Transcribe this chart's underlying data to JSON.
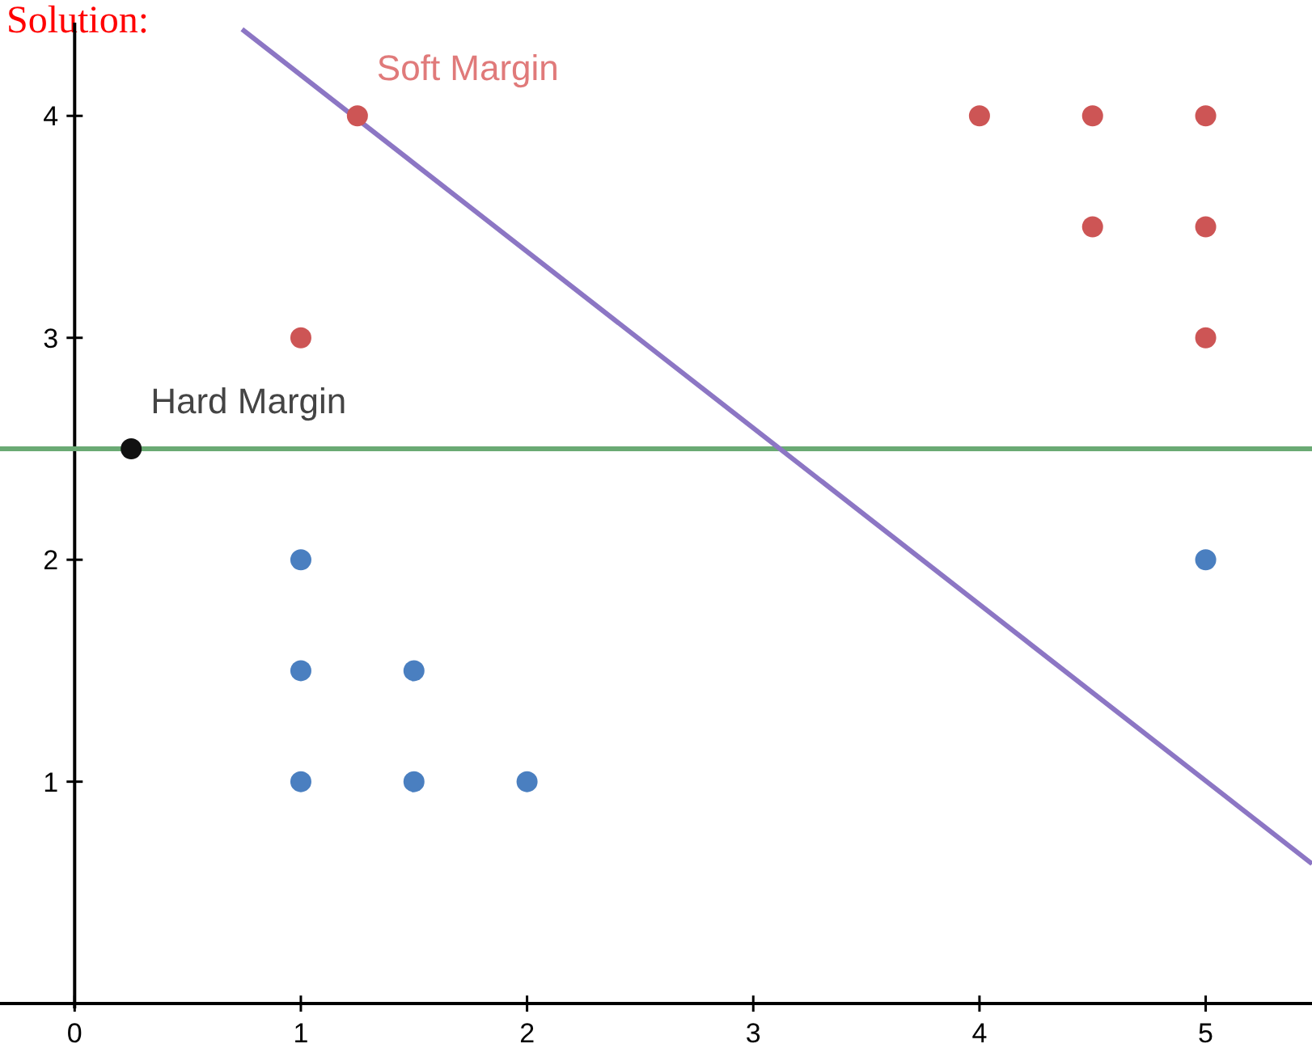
{
  "chart_data": {
    "type": "scatter",
    "title": "Solution:",
    "xlim": [
      -0.33,
      5.47
    ],
    "ylim": [
      -0.2,
      4.42
    ],
    "xticks": [
      0,
      1,
      2,
      3,
      4,
      5
    ],
    "yticks": [
      1,
      2,
      3,
      4
    ],
    "grid": false,
    "marker": "circle",
    "series": [
      {
        "color": "#cd5555",
        "x": [
          1.25,
          1,
          4,
          4.5,
          5,
          4.5,
          5,
          5
        ],
        "values": [
          4,
          3,
          4,
          4,
          4,
          3.5,
          3.5,
          3
        ]
      },
      {
        "color": "#4a7fc0",
        "x": [
          1,
          1,
          1.5,
          1,
          1.5,
          2,
          5
        ],
        "values": [
          2,
          1.5,
          1.5,
          1,
          1,
          1,
          2
        ]
      },
      {
        "color": "#111111",
        "x": [
          0.25
        ],
        "values": [
          2.5
        ]
      },
      {
        "type": "line",
        "marker": "none",
        "color": "#8c76c4",
        "x": [
          0.74,
          5.47
        ],
        "values": [
          4.39,
          0.63
        ]
      }
    ],
    "ref_lines": [
      {
        "axis": "y",
        "value": 2.5,
        "color": "#6aaa74"
      }
    ],
    "annotations": [
      {
        "text": "Soft Margin",
        "x": 1.25,
        "y": 4
      },
      {
        "text": "Hard Margin",
        "x": 0.25,
        "y": 2.5
      }
    ]
  }
}
